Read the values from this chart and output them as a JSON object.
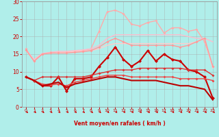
{
  "x": [
    0,
    1,
    2,
    3,
    4,
    5,
    6,
    7,
    8,
    9,
    10,
    11,
    12,
    13,
    14,
    15,
    16,
    17,
    18,
    19,
    20,
    21,
    22,
    23
  ],
  "series": [
    {
      "name": "rafales_top_pink",
      "color": "#ffaaaa",
      "lw": 1.0,
      "marker": "D",
      "ms": 2.0,
      "y": [
        16.5,
        13.0,
        15.0,
        15.5,
        15.5,
        15.5,
        15.8,
        16.0,
        16.5,
        21.5,
        27.0,
        27.5,
        26.5,
        23.5,
        23.0,
        24.0,
        24.5,
        21.0,
        22.5,
        22.5,
        21.5,
        22.0,
        18.5,
        11.5
      ]
    },
    {
      "name": "vent_upper_pink",
      "color": "#ffbbcc",
      "lw": 1.0,
      "marker": null,
      "ms": 0,
      "y": [
        16.2,
        13.5,
        15.2,
        15.5,
        15.8,
        15.8,
        16.0,
        16.2,
        16.5,
        17.5,
        19.5,
        20.5,
        20.5,
        20.5,
        20.5,
        20.5,
        20.5,
        20.5,
        20.5,
        20.5,
        20.0,
        19.5,
        19.5,
        18.5
      ]
    },
    {
      "name": "vent_mid_pink",
      "color": "#ffcccc",
      "lw": 1.0,
      "marker": null,
      "ms": 0,
      "y": [
        16.0,
        13.2,
        15.0,
        15.3,
        15.5,
        15.5,
        15.8,
        15.9,
        16.0,
        16.5,
        17.5,
        18.0,
        18.0,
        18.0,
        18.0,
        18.0,
        18.0,
        18.0,
        18.0,
        18.0,
        18.0,
        18.5,
        19.5,
        11.0
      ]
    },
    {
      "name": "rafales_mid_pink",
      "color": "#ff9999",
      "lw": 1.0,
      "marker": "D",
      "ms": 2.0,
      "y": [
        16.2,
        13.0,
        15.0,
        15.3,
        15.3,
        15.3,
        15.5,
        15.7,
        16.0,
        17.0,
        18.5,
        19.5,
        18.5,
        17.5,
        17.5,
        17.5,
        17.5,
        17.5,
        17.5,
        17.0,
        17.5,
        18.5,
        19.5,
        11.5
      ]
    },
    {
      "name": "zigzag_dark_red",
      "color": "#cc0000",
      "lw": 1.5,
      "marker": "D",
      "ms": 2.5,
      "y": [
        8.5,
        7.5,
        6.0,
        6.0,
        8.5,
        4.5,
        8.0,
        8.0,
        8.5,
        11.5,
        14.0,
        17.0,
        13.5,
        11.5,
        13.0,
        16.0,
        13.0,
        15.0,
        13.5,
        13.0,
        10.5,
        10.0,
        8.5,
        2.5
      ]
    },
    {
      "name": "gradual_red1",
      "color": "#dd3333",
      "lw": 1.0,
      "marker": "D",
      "ms": 2.0,
      "y": [
        8.5,
        7.5,
        8.5,
        8.5,
        8.5,
        8.5,
        8.5,
        8.5,
        9.0,
        9.5,
        10.0,
        10.5,
        10.5,
        10.5,
        11.0,
        11.0,
        11.0,
        11.0,
        11.0,
        11.0,
        10.5,
        10.5,
        10.5,
        9.0
      ]
    },
    {
      "name": "gradual_red2",
      "color": "#ee4444",
      "lw": 1.0,
      "marker": "D",
      "ms": 2.0,
      "y": [
        8.5,
        7.5,
        6.5,
        6.2,
        6.5,
        6.0,
        7.0,
        7.5,
        8.0,
        8.5,
        9.0,
        9.0,
        9.0,
        8.5,
        8.5,
        8.5,
        8.5,
        8.5,
        8.5,
        8.0,
        8.0,
        8.0,
        8.0,
        7.5
      ]
    },
    {
      "name": "decreasing_dark_red",
      "color": "#bb0000",
      "lw": 1.5,
      "marker": null,
      "ms": 0,
      "y": [
        8.5,
        7.5,
        6.0,
        6.5,
        7.0,
        5.5,
        6.5,
        7.0,
        7.5,
        8.0,
        8.5,
        8.5,
        8.0,
        7.5,
        7.5,
        7.5,
        7.5,
        7.0,
        6.5,
        6.0,
        6.0,
        5.5,
        5.0,
        2.0
      ]
    }
  ],
  "xlim": [
    -0.5,
    23.5
  ],
  "ylim": [
    0,
    30
  ],
  "yticks": [
    0,
    5,
    10,
    15,
    20,
    25,
    30
  ],
  "xticks": [
    0,
    1,
    2,
    3,
    4,
    5,
    6,
    7,
    8,
    9,
    10,
    11,
    12,
    13,
    14,
    15,
    16,
    17,
    18,
    19,
    20,
    21,
    22,
    23
  ],
  "xlabel": "Vent moyen/en rafales ( km/h )",
  "background_color": "#b0eeea",
  "grid_color": "#aaaaaa",
  "label_color": "#cc0000",
  "figsize": [
    3.2,
    2.0
  ],
  "dpi": 100
}
